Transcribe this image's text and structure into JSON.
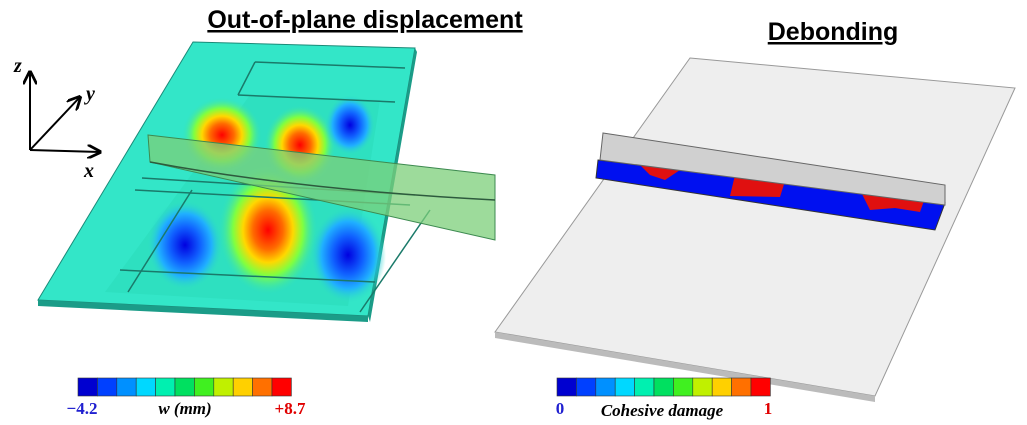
{
  "titles": {
    "left": "Out-of-plane displacement",
    "right": "Debonding"
  },
  "axes": {
    "z": "z",
    "y": "y",
    "x": "x"
  },
  "colorbars": [
    {
      "min_label": "−4.2",
      "label": "w (mm)",
      "max_label": "+8.7"
    },
    {
      "min_label": "0",
      "label": "Cohesive damage",
      "max_label": "1"
    }
  ]
}
